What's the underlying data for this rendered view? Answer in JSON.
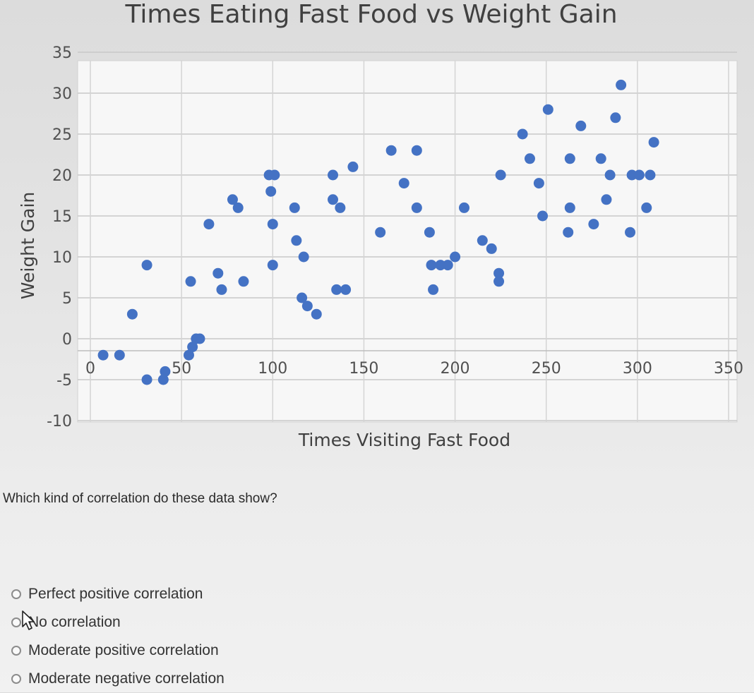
{
  "chart_data": {
    "type": "scatter",
    "title": "Times Eating Fast Food vs Weight Gain",
    "xlabel": "Times Visiting Fast Food",
    "ylabel": "Weight Gain",
    "xlim": [
      0,
      350
    ],
    "ylim": [
      -10,
      35
    ],
    "x_ticks": [
      "0",
      "50",
      "100",
      "150",
      "200",
      "250",
      "300",
      "350"
    ],
    "y_ticks": [
      "35",
      "30",
      "25",
      "20",
      "15",
      "10",
      "5",
      "0",
      "-5",
      "-10"
    ],
    "grid": true,
    "marker_color": "#4472c4",
    "series": [
      {
        "name": "Weight Gain",
        "points": [
          [
            7,
            -2
          ],
          [
            16,
            -2
          ],
          [
            23,
            3
          ],
          [
            31,
            9
          ],
          [
            31,
            -5
          ],
          [
            40,
            -5
          ],
          [
            41,
            -4
          ],
          [
            54,
            -2
          ],
          [
            56,
            -1
          ],
          [
            58,
            0
          ],
          [
            60,
            0
          ],
          [
            55,
            7
          ],
          [
            65,
            14
          ],
          [
            70,
            8
          ],
          [
            72,
            6
          ],
          [
            78,
            17
          ],
          [
            81,
            16
          ],
          [
            84,
            7
          ],
          [
            98,
            20
          ],
          [
            101,
            20
          ],
          [
            99,
            18
          ],
          [
            100,
            14
          ],
          [
            100,
            9
          ],
          [
            112,
            16
          ],
          [
            113,
            12
          ],
          [
            116,
            5
          ],
          [
            119,
            4
          ],
          [
            117,
            10
          ],
          [
            124,
            3
          ],
          [
            133,
            20
          ],
          [
            133,
            17
          ],
          [
            135,
            6
          ],
          [
            137,
            16
          ],
          [
            140,
            6
          ],
          [
            144,
            21
          ],
          [
            159,
            13
          ],
          [
            165,
            23
          ],
          [
            172,
            19
          ],
          [
            179,
            23
          ],
          [
            179,
            16
          ],
          [
            186,
            13
          ],
          [
            187,
            9
          ],
          [
            192,
            9
          ],
          [
            196,
            9
          ],
          [
            188,
            6
          ],
          [
            200,
            10
          ],
          [
            205,
            16
          ],
          [
            215,
            12
          ],
          [
            220,
            11
          ],
          [
            224,
            8
          ],
          [
            224,
            7
          ],
          [
            225,
            20
          ],
          [
            237,
            25
          ],
          [
            241,
            22
          ],
          [
            246,
            19
          ],
          [
            248,
            15
          ],
          [
            251,
            28
          ],
          [
            263,
            22
          ],
          [
            263,
            16
          ],
          [
            262,
            13
          ],
          [
            269,
            26
          ],
          [
            276,
            14
          ],
          [
            280,
            22
          ],
          [
            283,
            17
          ],
          [
            285,
            20
          ],
          [
            288,
            27
          ],
          [
            291,
            31
          ],
          [
            296,
            13
          ],
          [
            297,
            20
          ],
          [
            301,
            20
          ],
          [
            305,
            16
          ],
          [
            307,
            20
          ],
          [
            309,
            24
          ]
        ]
      }
    ]
  },
  "question": {
    "text": "Which kind of correlation do these data show?",
    "options": [
      "Perfect positive correlation",
      "No correlation",
      "Moderate positive correlation",
      "Moderate negative correlation"
    ]
  }
}
